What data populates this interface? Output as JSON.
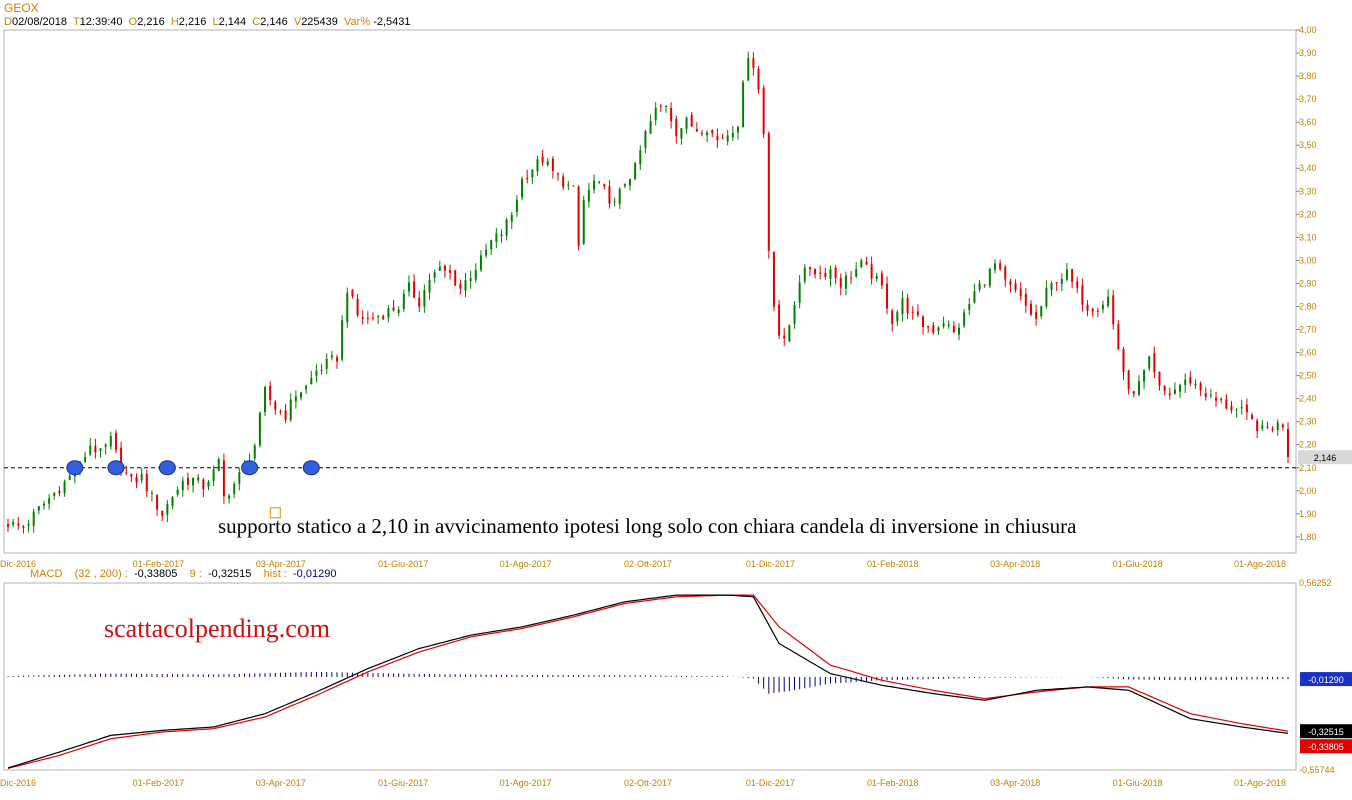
{
  "header": {
    "symbol": "GEOX",
    "d_label": "D",
    "date": "02/08/2018",
    "t_label": "T",
    "time": "12:39:40",
    "o_label": "O",
    "open": "2,216",
    "h_label": "H",
    "high": "2,216",
    "l_label": "L",
    "low": "2,144",
    "c_label": "C",
    "close": "2,146",
    "v_label": "V",
    "volume": "225439",
    "var_label": "Var%",
    "var": "-2,5431"
  },
  "macd_header": {
    "name": "MACD",
    "params": "(32 , 200) :",
    "macd_value": "-0,33805",
    "signal_label": "9 :",
    "signal_value": "-0,32515",
    "hist_label": "hist :",
    "hist_value": "-0,01290"
  },
  "annotations": {
    "support_text": "supporto statico a 2,10 in avvicinamento ipotesi long solo con chiara candela di inversione in chiusura",
    "watermark": "scattacolpending.com"
  },
  "colors": {
    "up": "#008000",
    "down": "#e00000",
    "macd": "#000000",
    "signal": "#e00000",
    "hist": "#000090",
    "axis_text": "#c08000",
    "support_line": "#000000",
    "marker": "#3060e0",
    "watermark": "#d01010"
  },
  "chart_data": [
    {
      "type": "candlestick",
      "title": "GEOX",
      "x_ticks": [
        "Dic-2016",
        "01-Feb-2017",
        "03-Apr-2017",
        "01-Giu-2017",
        "01-Ago-2017",
        "02-Ott-2017",
        "01-Dic-2017",
        "01-Feb-2018",
        "03-Apr-2018",
        "01-Giu-2018",
        "01-Ago-2018"
      ],
      "y_ticks": [
        "1,80",
        "1,90",
        "2,00",
        "2,10",
        "2,20",
        "2,30",
        "2,40",
        "2,50",
        "2,60",
        "2,70",
        "2,80",
        "2,90",
        "3,00",
        "3,10",
        "3,20",
        "3,30",
        "3,40",
        "3,50",
        "3,60",
        "3,70",
        "3,80",
        "3,90",
        "4,00"
      ],
      "ylim": [
        1.73,
        4.0
      ],
      "last_price_label": "2,146",
      "support_level": 2.1,
      "close_path": [
        [
          0,
          1.86
        ],
        [
          3,
          1.84
        ],
        [
          6,
          1.92
        ],
        [
          9,
          1.99
        ],
        [
          12,
          2.06
        ],
        [
          14,
          2.11
        ],
        [
          16,
          2.2
        ],
        [
          18,
          2.16
        ],
        [
          20,
          2.22
        ],
        [
          22,
          2.1
        ],
        [
          24,
          2.04
        ],
        [
          26,
          2.06
        ],
        [
          28,
          1.97
        ],
        [
          30,
          1.9
        ],
        [
          32,
          1.98
        ],
        [
          34,
          2.04
        ],
        [
          36,
          2.05
        ],
        [
          38,
          2.02
        ],
        [
          40,
          2.08
        ],
        [
          41,
          2.12
        ],
        [
          42,
          1.97
        ],
        [
          44,
          2.03
        ],
        [
          46,
          2.1
        ],
        [
          48,
          2.2
        ],
        [
          50,
          2.43
        ],
        [
          52,
          2.36
        ],
        [
          54,
          2.33
        ],
        [
          56,
          2.42
        ],
        [
          58,
          2.45
        ],
        [
          60,
          2.52
        ],
        [
          62,
          2.55
        ],
        [
          64,
          2.58
        ],
        [
          66,
          2.88
        ],
        [
          68,
          2.76
        ],
        [
          70,
          2.74
        ],
        [
          72,
          2.76
        ],
        [
          74,
          2.78
        ],
        [
          76,
          2.8
        ],
        [
          78,
          2.88
        ],
        [
          80,
          2.82
        ],
        [
          82,
          2.92
        ],
        [
          84,
          2.96
        ],
        [
          86,
          2.94
        ],
        [
          88,
          2.88
        ],
        [
          90,
          2.94
        ],
        [
          92,
          3.0
        ],
        [
          94,
          3.08
        ],
        [
          96,
          3.12
        ],
        [
          98,
          3.2
        ],
        [
          100,
          3.35
        ],
        [
          102,
          3.4
        ],
        [
          104,
          3.44
        ],
        [
          106,
          3.38
        ],
        [
          108,
          3.34
        ],
        [
          110,
          3.3
        ],
        [
          111,
          3.06
        ],
        [
          112,
          3.26
        ],
        [
          114,
          3.34
        ],
        [
          116,
          3.3
        ],
        [
          118,
          3.24
        ],
        [
          120,
          3.34
        ],
        [
          122,
          3.4
        ],
        [
          124,
          3.55
        ],
        [
          126,
          3.65
        ],
        [
          128,
          3.68
        ],
        [
          130,
          3.56
        ],
        [
          132,
          3.6
        ],
        [
          134,
          3.57
        ],
        [
          136,
          3.58
        ],
        [
          138,
          3.52
        ],
        [
          140,
          3.55
        ],
        [
          142,
          3.6
        ],
        [
          144,
          3.9
        ],
        [
          145,
          3.85
        ],
        [
          146,
          3.74
        ],
        [
          147,
          3.55
        ],
        [
          148,
          3.05
        ],
        [
          149,
          2.82
        ],
        [
          150,
          2.68
        ],
        [
          151,
          2.64
        ],
        [
          152,
          2.72
        ],
        [
          154,
          2.92
        ],
        [
          156,
          2.97
        ],
        [
          158,
          2.94
        ],
        [
          160,
          2.96
        ],
        [
          162,
          2.9
        ],
        [
          164,
          2.94
        ],
        [
          166,
          2.98
        ],
        [
          168,
          2.94
        ],
        [
          170,
          2.88
        ],
        [
          172,
          2.74
        ],
        [
          174,
          2.82
        ],
        [
          176,
          2.76
        ],
        [
          178,
          2.72
        ],
        [
          180,
          2.7
        ],
        [
          182,
          2.74
        ],
        [
          184,
          2.68
        ],
        [
          186,
          2.76
        ],
        [
          188,
          2.86
        ],
        [
          190,
          2.92
        ],
        [
          192,
          2.98
        ],
        [
          194,
          2.9
        ],
        [
          196,
          2.86
        ],
        [
          198,
          2.8
        ],
        [
          200,
          2.74
        ],
        [
          202,
          2.86
        ],
        [
          204,
          2.92
        ],
        [
          206,
          2.94
        ],
        [
          208,
          2.86
        ],
        [
          210,
          2.8
        ],
        [
          212,
          2.8
        ],
        [
          214,
          2.84
        ],
        [
          215,
          2.72
        ],
        [
          216,
          2.62
        ],
        [
          218,
          2.42
        ],
        [
          220,
          2.46
        ],
        [
          222,
          2.56
        ],
        [
          224,
          2.44
        ],
        [
          226,
          2.42
        ],
        [
          228,
          2.46
        ],
        [
          230,
          2.48
        ],
        [
          232,
          2.44
        ],
        [
          234,
          2.4
        ],
        [
          236,
          2.38
        ],
        [
          238,
          2.36
        ],
        [
          240,
          2.34
        ],
        [
          242,
          2.3
        ],
        [
          244,
          2.26
        ],
        [
          246,
          2.28
        ],
        [
          248,
          2.29
        ],
        [
          249,
          2.146
        ]
      ]
    },
    {
      "type": "line",
      "title": "MACD (32 , 200)",
      "ylim": [
        -0.55744,
        0.56252
      ],
      "y_ticks": [
        "0,56252",
        "-0,55744"
      ],
      "value_tags": {
        "hist": "-0,01290",
        "signal": "-0,32515",
        "macd": "-0,33805"
      },
      "series": [
        {
          "name": "MACD",
          "points": [
            [
              0,
              -0.545
            ],
            [
              10,
              -0.45
            ],
            [
              20,
              -0.35
            ],
            [
              30,
              -0.32
            ],
            [
              40,
              -0.3
            ],
            [
              50,
              -0.22
            ],
            [
              60,
              -0.09
            ],
            [
              70,
              0.05
            ],
            [
              80,
              0.17
            ],
            [
              90,
              0.25
            ],
            [
              100,
              0.3
            ],
            [
              110,
              0.37
            ],
            [
              120,
              0.45
            ],
            [
              130,
              0.49
            ],
            [
              140,
              0.49
            ],
            [
              145,
              0.48
            ],
            [
              150,
              0.2
            ],
            [
              160,
              0.02
            ],
            [
              170,
              -0.05
            ],
            [
              180,
              -0.1
            ],
            [
              190,
              -0.14
            ],
            [
              200,
              -0.08
            ],
            [
              210,
              -0.06
            ],
            [
              218,
              -0.08
            ],
            [
              230,
              -0.25
            ],
            [
              240,
              -0.3
            ],
            [
              249,
              -0.33805
            ]
          ]
        },
        {
          "name": "9",
          "points": [
            [
              0,
              -0.548
            ],
            [
              10,
              -0.47
            ],
            [
              20,
              -0.37
            ],
            [
              30,
              -0.33
            ],
            [
              40,
              -0.31
            ],
            [
              50,
              -0.24
            ],
            [
              60,
              -0.11
            ],
            [
              70,
              0.03
            ],
            [
              80,
              0.15
            ],
            [
              90,
              0.24
            ],
            [
              100,
              0.29
            ],
            [
              110,
              0.36
            ],
            [
              120,
              0.44
            ],
            [
              130,
              0.48
            ],
            [
              140,
              0.49
            ],
            [
              145,
              0.49
            ],
            [
              150,
              0.3
            ],
            [
              160,
              0.07
            ],
            [
              170,
              -0.02
            ],
            [
              180,
              -0.08
            ],
            [
              190,
              -0.13
            ],
            [
              200,
              -0.09
            ],
            [
              210,
              -0.06
            ],
            [
              218,
              -0.06
            ],
            [
              230,
              -0.22
            ],
            [
              240,
              -0.28
            ],
            [
              249,
              -0.32515
            ]
          ]
        },
        {
          "name": "hist",
          "points": [
            [
              0,
              0.005
            ],
            [
              20,
              0.02
            ],
            [
              40,
              0.015
            ],
            [
              60,
              0.03
            ],
            [
              80,
              0.018
            ],
            [
              100,
              0.012
            ],
            [
              120,
              0.01
            ],
            [
              140,
              0.004
            ],
            [
              145,
              -0.01
            ],
            [
              148,
              -0.1
            ],
            [
              152,
              -0.085
            ],
            [
              160,
              -0.04
            ],
            [
              170,
              -0.02
            ],
            [
              190,
              -0.005
            ],
            [
              210,
              0.0
            ],
            [
              218,
              -0.015
            ],
            [
              230,
              -0.02
            ],
            [
              249,
              -0.0129
            ]
          ]
        }
      ]
    }
  ]
}
